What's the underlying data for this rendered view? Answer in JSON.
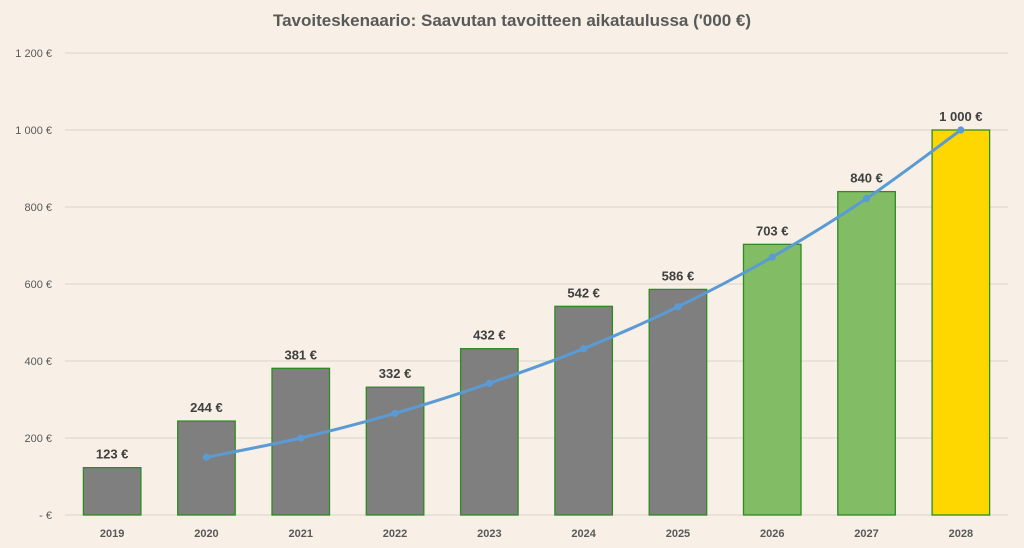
{
  "chart_data": {
    "type": "bar",
    "title": "Tavoiteskenaario: Saavutan tavoitteen aikataulussa ('000 €)",
    "categories": [
      "2019",
      "2020",
      "2021",
      "2022",
      "2023",
      "2024",
      "2025",
      "2026",
      "2027",
      "2028"
    ],
    "series": [
      {
        "type": "bar",
        "values": [
          123,
          244,
          381,
          332,
          432,
          542,
          586,
          703,
          840,
          1000
        ],
        "data_labels": [
          "123 €",
          "244 €",
          "381 €",
          "332 €",
          "432 €",
          "542 €",
          "586 €",
          "703 €",
          "840 €",
          "1 000 €"
        ],
        "colors": [
          "#7F7F7F",
          "#7F7F7F",
          "#7F7F7F",
          "#7F7F7F",
          "#7F7F7F",
          "#7F7F7F",
          "#7F7F7F",
          "#82BC64",
          "#82BC64",
          "#FFD700"
        ],
        "border_color": "#2E8B22"
      },
      {
        "type": "line",
        "color": "#5B9BD5",
        "values": [
          null,
          150,
          200,
          264,
          342,
          432,
          541,
          670,
          822,
          1000
        ]
      }
    ],
    "y_ticks": [
      {
        "value": 0,
        "label": "-   €"
      },
      {
        "value": 200,
        "label": "200 €"
      },
      {
        "value": 400,
        "label": "400 €"
      },
      {
        "value": 600,
        "label": "600 €"
      },
      {
        "value": 800,
        "label": "800 €"
      },
      {
        "value": 1000,
        "label": "1 000 €"
      },
      {
        "value": 1200,
        "label": "1 200 €"
      }
    ],
    "ylim": [
      0,
      1200
    ],
    "grid": true,
    "legend": "none"
  }
}
